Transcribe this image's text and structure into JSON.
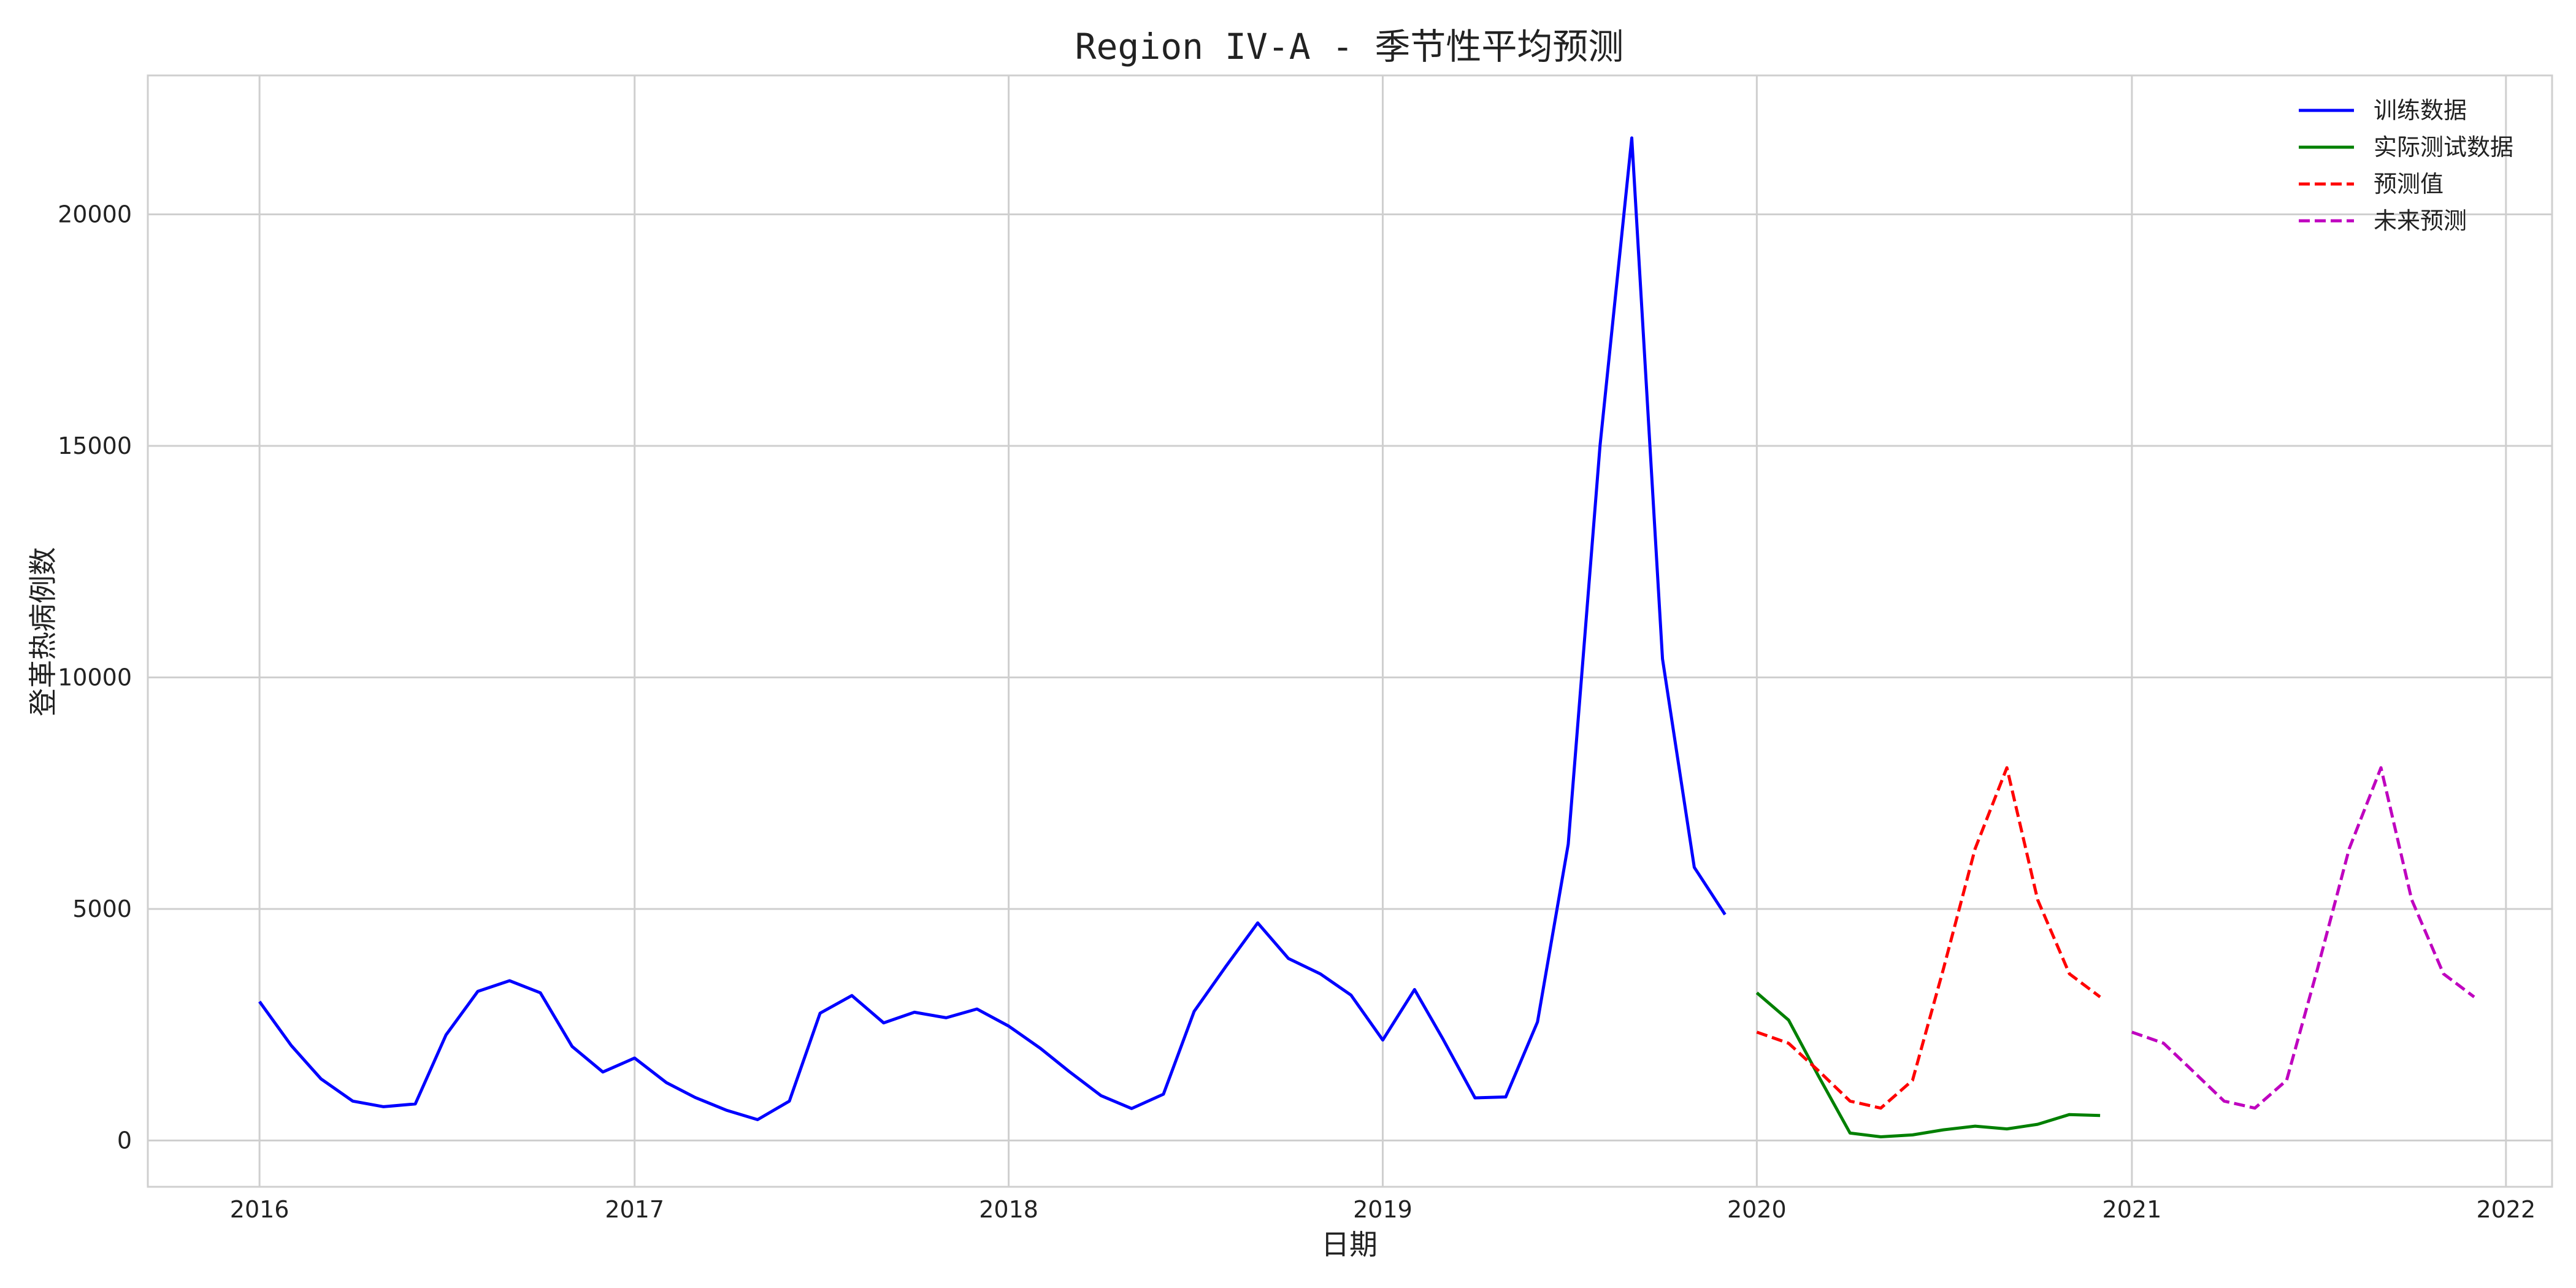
{
  "chart_data": {
    "type": "line",
    "title": "Region IV-A - 季节性平均预测",
    "xlabel": "日期",
    "ylabel": "登革热病例数",
    "xlim": [
      "2015-09-14",
      "2022-02-15"
    ],
    "ylim": [
      -1000,
      23000
    ],
    "x_ticks": [
      "2016-01-01",
      "2017-01-01",
      "2018-01-01",
      "2019-01-01",
      "2020-01-01",
      "2021-01-01",
      "2022-01-01"
    ],
    "x_tick_labels": [
      "2016",
      "2017",
      "2018",
      "2019",
      "2020",
      "2021",
      "2022"
    ],
    "y_ticks": [
      0,
      5000,
      10000,
      15000,
      20000
    ],
    "y_tick_labels": [
      "0",
      "5000",
      "10000",
      "15000",
      "20000"
    ],
    "grid": true,
    "legend_position": "top-right",
    "series": [
      {
        "name": "训练数据",
        "color": "#0000ff",
        "style": "solid",
        "x": [
          "2016-01-01",
          "2016-02-01",
          "2016-03-01",
          "2016-04-01",
          "2016-05-01",
          "2016-06-01",
          "2016-07-01",
          "2016-08-01",
          "2016-09-01",
          "2016-10-01",
          "2016-11-01",
          "2016-12-01",
          "2017-01-01",
          "2017-02-01",
          "2017-03-01",
          "2017-04-01",
          "2017-05-01",
          "2017-06-01",
          "2017-07-01",
          "2017-08-01",
          "2017-09-01",
          "2017-10-01",
          "2017-11-01",
          "2017-12-01",
          "2018-01-01",
          "2018-02-01",
          "2018-03-01",
          "2018-04-01",
          "2018-05-01",
          "2018-06-01",
          "2018-07-01",
          "2018-08-01",
          "2018-09-01",
          "2018-10-01",
          "2018-11-01",
          "2018-12-01",
          "2019-01-01",
          "2019-02-01",
          "2019-03-01",
          "2019-04-01",
          "2019-05-01",
          "2019-06-01",
          "2019-07-01",
          "2019-08-01",
          "2019-09-01",
          "2019-10-01",
          "2019-11-01",
          "2019-12-01"
        ],
        "y": [
          3000,
          2050,
          1330,
          850,
          730,
          790,
          2280,
          3220,
          3450,
          3190,
          2030,
          1480,
          1780,
          1250,
          930,
          650,
          450,
          850,
          2750,
          3130,
          2540,
          2770,
          2650,
          2840,
          2470,
          1990,
          1490,
          970,
          690,
          1000,
          2790,
          3760,
          4700,
          3930,
          3600,
          3140,
          2170,
          3260,
          2180,
          920,
          940,
          2560,
          6400,
          15000,
          21650,
          10400,
          5900,
          4880
        ]
      },
      {
        "name": "实际测试数据",
        "color": "#008000",
        "style": "solid",
        "x": [
          "2020-01-01",
          "2020-02-01",
          "2020-03-01",
          "2020-04-01",
          "2020-05-01",
          "2020-06-01",
          "2020-07-01",
          "2020-08-01",
          "2020-09-01",
          "2020-10-01",
          "2020-11-01",
          "2020-12-01"
        ],
        "y": [
          3190,
          2600,
          1400,
          160,
          80,
          120,
          230,
          310,
          250,
          350,
          560,
          540
        ]
      },
      {
        "name": "预测值",
        "color": "#ff0000",
        "style": "dashed",
        "x": [
          "2020-01-01",
          "2020-02-01",
          "2020-03-01",
          "2020-04-01",
          "2020-05-01",
          "2020-06-01",
          "2020-07-01",
          "2020-08-01",
          "2020-09-01",
          "2020-10-01",
          "2020-11-01",
          "2020-12-01"
        ],
        "y": [
          2340,
          2100,
          1510,
          850,
          700,
          1300,
          3700,
          6300,
          8050,
          5200,
          3600,
          3100
        ]
      },
      {
        "name": "未来预测",
        "color": "#bf00bf",
        "style": "dashed",
        "x": [
          "2021-01-01",
          "2021-02-01",
          "2021-03-01",
          "2021-04-01",
          "2021-05-01",
          "2021-06-01",
          "2021-07-01",
          "2021-08-01",
          "2021-09-01",
          "2021-10-01",
          "2021-11-01",
          "2021-12-01"
        ],
        "y": [
          2340,
          2100,
          1510,
          850,
          700,
          1300,
          3700,
          6300,
          8050,
          5200,
          3600,
          3100
        ]
      }
    ]
  }
}
